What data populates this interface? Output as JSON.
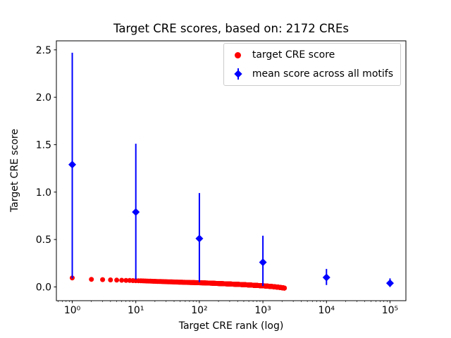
{
  "chart_data": {
    "type": "scatter",
    "title": "Target CRE scores, based on: 2172 CREs",
    "xlabel": "Target CRE rank (log)",
    "ylabel": "Target CRE score",
    "x_scale": "log",
    "xlog_lim": [
      -0.25,
      5.25
    ],
    "ylim": [
      -0.145,
      2.595
    ],
    "x_ticks": [
      1,
      10,
      100,
      1000,
      10000,
      100000
    ],
    "x_tick_labels": [
      "10⁰",
      "10¹",
      "10²",
      "10³",
      "10⁴",
      "10⁵"
    ],
    "y_ticks": [
      0.0,
      0.5,
      1.0,
      1.5,
      2.0,
      2.5
    ],
    "y_tick_labels": [
      "0.0",
      "0.5",
      "1.0",
      "1.5",
      "2.0",
      "2.5"
    ],
    "grid": false,
    "legend_position": "upper right",
    "series": [
      {
        "name": "target CRE score",
        "color": "#ff0000",
        "marker": "circle",
        "n_points": 2172,
        "trend_anchors": [
          [
            1,
            0.095
          ],
          [
            2,
            0.08
          ],
          [
            3,
            0.077
          ],
          [
            4,
            0.074
          ],
          [
            5,
            0.072
          ],
          [
            7,
            0.069
          ],
          [
            10,
            0.066
          ],
          [
            15,
            0.062
          ],
          [
            20,
            0.059
          ],
          [
            30,
            0.055
          ],
          [
            50,
            0.05
          ],
          [
            70,
            0.047
          ],
          [
            100,
            0.044
          ],
          [
            150,
            0.04
          ],
          [
            200,
            0.036
          ],
          [
            300,
            0.031
          ],
          [
            500,
            0.024
          ],
          [
            700,
            0.018
          ],
          [
            1000,
            0.012
          ],
          [
            1400,
            0.004
          ],
          [
            1800,
            -0.004
          ],
          [
            2172,
            -0.012
          ]
        ]
      },
      {
        "name": "mean score across all motifs",
        "color": "#0000ff",
        "marker": "diamond",
        "x": [
          1,
          10,
          100,
          1000,
          10000,
          100000
        ],
        "y": [
          1.29,
          0.79,
          0.51,
          0.26,
          0.1,
          0.04
        ],
        "err_bottom": [
          0.09,
          0.08,
          0.05,
          0.01,
          0.02,
          0.0
        ],
        "err_top": [
          2.47,
          1.51,
          0.99,
          0.54,
          0.19,
          0.09
        ]
      }
    ]
  }
}
